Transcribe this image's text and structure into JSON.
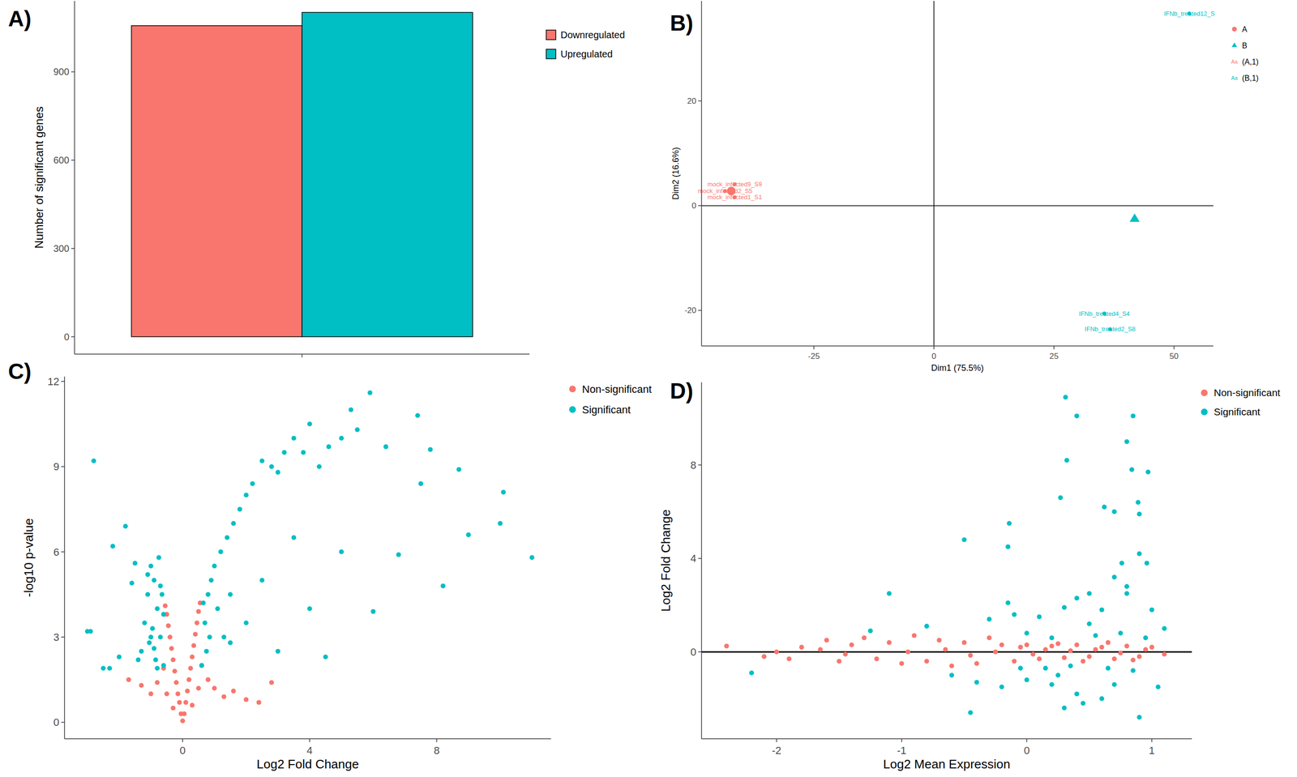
{
  "chart_data": [
    {
      "type": "bar",
      "title": "A)",
      "categories": [
        null
      ],
      "series": [
        {
          "name": "Downregulated",
          "color": "#F8766D",
          "values": [
            1057
          ]
        },
        {
          "name": "Upregulated",
          "color": "#00BFC4",
          "values": [
            1102
          ]
        }
      ],
      "y_label": "Number of significant genes",
      "ylim": [
        -59,
        1141
      ],
      "yticks": [
        0,
        300,
        600,
        900
      ],
      "grid": false,
      "legend": "right"
    },
    {
      "type": "scatter",
      "title": "B)",
      "x_label": "Dim1 (75.5%)",
      "y_label": "Dim2 (16.6%)",
      "xlim": [
        -48.4,
        58.2
      ],
      "xticks": [
        -25,
        0,
        25,
        50
      ],
      "ylim": [
        -26.8,
        39.1
      ],
      "yticks": [
        -20,
        0,
        20
      ],
      "hline": 0,
      "vline": 0,
      "legend_symbol": "Aa",
      "legend": "right",
      "grid": false,
      "series": [
        {
          "name": "A",
          "color": "#F8766D",
          "marker": "circle",
          "x": [
            -42.2
          ],
          "values": [
            2.8
          ]
        },
        {
          "name": "B",
          "color": "#00BFC4",
          "marker": "triangle",
          "x": [
            41.8
          ],
          "values": [
            -2.5
          ]
        },
        {
          "name": "(A,1)",
          "color": "#F8766D",
          "marker": "text",
          "x": [
            -41.5,
            -43.5,
            -41.5
          ],
          "values": [
            4.1,
            2.8,
            1.6
          ],
          "labels": [
            "mock_infected9_S9",
            "mock_infected2_S5",
            "mock_infected1_S1"
          ]
        },
        {
          "name": "(B,1)",
          "color": "#00BFC4",
          "marker": "text",
          "x": [
            53.2,
            35.5,
            36.7
          ],
          "values": [
            36.7,
            -20.6,
            -23.6
          ],
          "labels": [
            "IFNb_treated12_S",
            "IFNb_treated4_S4",
            "IFNb_treated2_S8"
          ]
        }
      ]
    },
    {
      "type": "scatter",
      "title": "C)",
      "x_label": "Log2 Fold Change",
      "y_label": "-log10 p-value",
      "xlim": [
        -3.72,
        11.6
      ],
      "xticks": [
        0,
        4,
        8
      ],
      "ylim": [
        -0.58,
        12.17
      ],
      "yticks": [
        0,
        3,
        6,
        9,
        12
      ],
      "legend": "right",
      "grid": false,
      "series": [
        {
          "name": "Non-significant",
          "color": "#F8766D",
          "marker": "circle",
          "x": [
            0,
            0.05,
            -0.05,
            0.1,
            -0.1,
            0.15,
            -0.15,
            0.2,
            -0.2,
            0.25,
            -0.25,
            0.3,
            -0.3,
            0.35,
            -0.35,
            0.4,
            -0.4,
            0.45,
            -0.45,
            0.5,
            -0.5,
            0.55,
            -0.55,
            0.6,
            -0.6,
            0.3,
            -0.3,
            0.5,
            -0.5,
            0.8,
            1.0,
            1.3,
            1.6,
            2.0,
            2.4,
            2.8,
            -0.8,
            -1.0,
            -1.3,
            -1.7
          ],
          "values": [
            0.05,
            0.3,
            0.3,
            0.7,
            0.7,
            1.1,
            1.0,
            1.5,
            1.4,
            1.9,
            1.8,
            2.3,
            2.2,
            2.7,
            2.6,
            3.1,
            3.0,
            3.5,
            3.4,
            3.9,
            3.8,
            4.2,
            4.1,
            2.0,
            1.9,
            0.6,
            0.5,
            1.2,
            1.0,
            1.5,
            1.2,
            0.9,
            1.1,
            0.8,
            0.7,
            1.4,
            1.4,
            1.0,
            1.3,
            1.5
          ]
        },
        {
          "name": "Significant",
          "color": "#00BFC4",
          "marker": "circle",
          "x": [
            -0.6,
            -0.7,
            -0.8,
            -0.9,
            -1.0,
            -1.1,
            -1.2,
            -1.3,
            -0.65,
            -0.75,
            -0.85,
            -0.95,
            -1.05,
            -1.4,
            -1.6,
            -1.8,
            -2.0,
            -2.2,
            -2.5,
            -2.9,
            0.6,
            0.7,
            0.8,
            0.9,
            1.0,
            1.2,
            1.4,
            1.6,
            1.8,
            2.0,
            0.65,
            0.75,
            0.85,
            1.1,
            1.3,
            1.5,
            2.2,
            2.5,
            2.8,
            3.0,
            3.2,
            3.5,
            3.8,
            4.0,
            4.3,
            4.6,
            5.0,
            5.3,
            5.5,
            5.9,
            7.4,
            6.4,
            7.8,
            8.7,
            10.1,
            10.0,
            11.0,
            8.2,
            9.0,
            6.0,
            2.5,
            3.5,
            4.0,
            5.0,
            2.0,
            3.0,
            4.5,
            6.8,
            7.5,
            1.5,
            -2.8,
            -2.3,
            -3.0,
            -1.5,
            -1.0,
            -0.7,
            -0.9,
            -1.1,
            -0.6,
            -0.8
          ],
          "values": [
            2.0,
            3.0,
            4.0,
            5.0,
            5.5,
            4.5,
            3.5,
            2.5,
            4.5,
            5.8,
            2.2,
            3.3,
            2.8,
            2.2,
            4.9,
            6.9,
            2.3,
            6.2,
            1.9,
            3.2,
            2.0,
            3.5,
            4.5,
            5.0,
            5.5,
            6.0,
            6.5,
            7.0,
            7.5,
            8.0,
            4.2,
            2.5,
            3.0,
            4.0,
            3.0,
            2.8,
            8.4,
            9.2,
            9.0,
            8.8,
            9.5,
            10.0,
            9.5,
            10.5,
            9.0,
            9.7,
            10.0,
            11.0,
            10.3,
            11.6,
            10.8,
            9.7,
            9.6,
            8.9,
            8.1,
            7.0,
            5.8,
            4.8,
            6.6,
            3.9,
            5.0,
            6.5,
            4.0,
            6.0,
            3.5,
            2.5,
            2.3,
            5.9,
            8.4,
            4.5,
            9.2,
            1.9,
            3.2,
            5.6,
            3.0,
            4.8,
            2.6,
            5.2,
            3.8,
            1.9
          ]
        }
      ]
    },
    {
      "type": "scatter",
      "title": "D)",
      "x_label": "Log2 Mean Expression",
      "y_label": "Log2 Fold Change",
      "xlim": [
        -2.6,
        1.32
      ],
      "xticks": [
        -2,
        -1,
        0,
        1
      ],
      "ylim": [
        -3.72,
        11.54
      ],
      "yticks": [
        0,
        4,
        8
      ],
      "hline": 0,
      "legend": "right",
      "grid": false,
      "series": [
        {
          "name": "Non-significant",
          "color": "#F8766D",
          "marker": "circle",
          "x": [
            -2.4,
            -2.1,
            -1.9,
            -1.8,
            -1.6,
            -1.5,
            -1.4,
            -1.3,
            -1.2,
            -1.1,
            -1.0,
            -0.9,
            -0.8,
            -0.7,
            -0.6,
            -0.5,
            -0.4,
            -0.3,
            -0.2,
            -0.1,
            0.0,
            0.1,
            0.2,
            0.3,
            0.4,
            0.5,
            0.6,
            0.7,
            0.8,
            0.9,
            1.0,
            1.1,
            0.05,
            0.15,
            0.35,
            0.55,
            0.75,
            0.95,
            -0.25,
            -0.65,
            -1.45,
            -1.65,
            -0.95,
            -2.0,
            0.45,
            0.65,
            0.85,
            0.25,
            -0.05,
            -0.45
          ],
          "values": [
            0.25,
            -0.2,
            -0.3,
            0.2,
            0.5,
            -0.4,
            0.3,
            0.6,
            -0.3,
            0.4,
            -0.5,
            0.7,
            -0.4,
            0.5,
            -0.6,
            0.4,
            -0.5,
            0.6,
            0.3,
            -0.4,
            0.3,
            -0.3,
            0.25,
            -0.25,
            0.3,
            -0.2,
            0.2,
            -0.3,
            0.25,
            -0.2,
            0.2,
            -0.1,
            -0.1,
            0.1,
            0.05,
            0.1,
            -0.05,
            0.1,
            0.0,
            0.1,
            -0.1,
            0.1,
            0.0,
            0.0,
            -0.4,
            0.4,
            -0.35,
            0.35,
            0.2,
            -0.15
          ]
        },
        {
          "name": "Significant",
          "color": "#00BFC4",
          "marker": "circle",
          "x": [
            -2.2,
            -1.1,
            -1.25,
            -0.8,
            -0.6,
            -0.5,
            -0.4,
            -0.3,
            -0.2,
            -0.1,
            -0.45,
            -0.15,
            -0.15,
            0.0,
            0.1,
            0.2,
            0.3,
            0.4,
            0.5,
            0.6,
            0.31,
            0.4,
            0.85,
            0.32,
            0.8,
            0.27,
            0.62,
            0.7,
            0.84,
            0.89,
            -0.14,
            0.9,
            0.97,
            0.76,
            0.96,
            0.7,
            0.8,
            0.9,
            1.0,
            1.05,
            0.2,
            0.35,
            0.55,
            0.65,
            0.75,
            0.85,
            0.95,
            0.15,
            0.45,
            1.1,
            0.25,
            0.5,
            0.6,
            0.7,
            0.8,
            0.9,
            0.4,
            0.3,
            0.0,
            -0.05
          ],
          "values": [
            -0.9,
            2.5,
            0.9,
            1.1,
            -1.0,
            4.8,
            -1.3,
            1.4,
            -1.5,
            1.6,
            -2.6,
            2.1,
            4.5,
            -1.2,
            1.5,
            -1.4,
            1.9,
            -1.8,
            2.5,
            -2.0,
            10.9,
            10.1,
            10.1,
            8.2,
            9.0,
            6.6,
            6.2,
            6.0,
            7.8,
            6.4,
            5.5,
            5.9,
            7.7,
            3.8,
            3.8,
            3.2,
            2.5,
            4.2,
            1.8,
            -1.5,
            0.6,
            -0.6,
            0.7,
            -0.7,
            0.8,
            -0.8,
            0.6,
            -0.7,
            -2.2,
            1.0,
            -1.0,
            1.2,
            1.8,
            -1.4,
            2.8,
            -2.8,
            2.3,
            -2.4,
            0.8,
            -0.7
          ]
        }
      ]
    }
  ]
}
